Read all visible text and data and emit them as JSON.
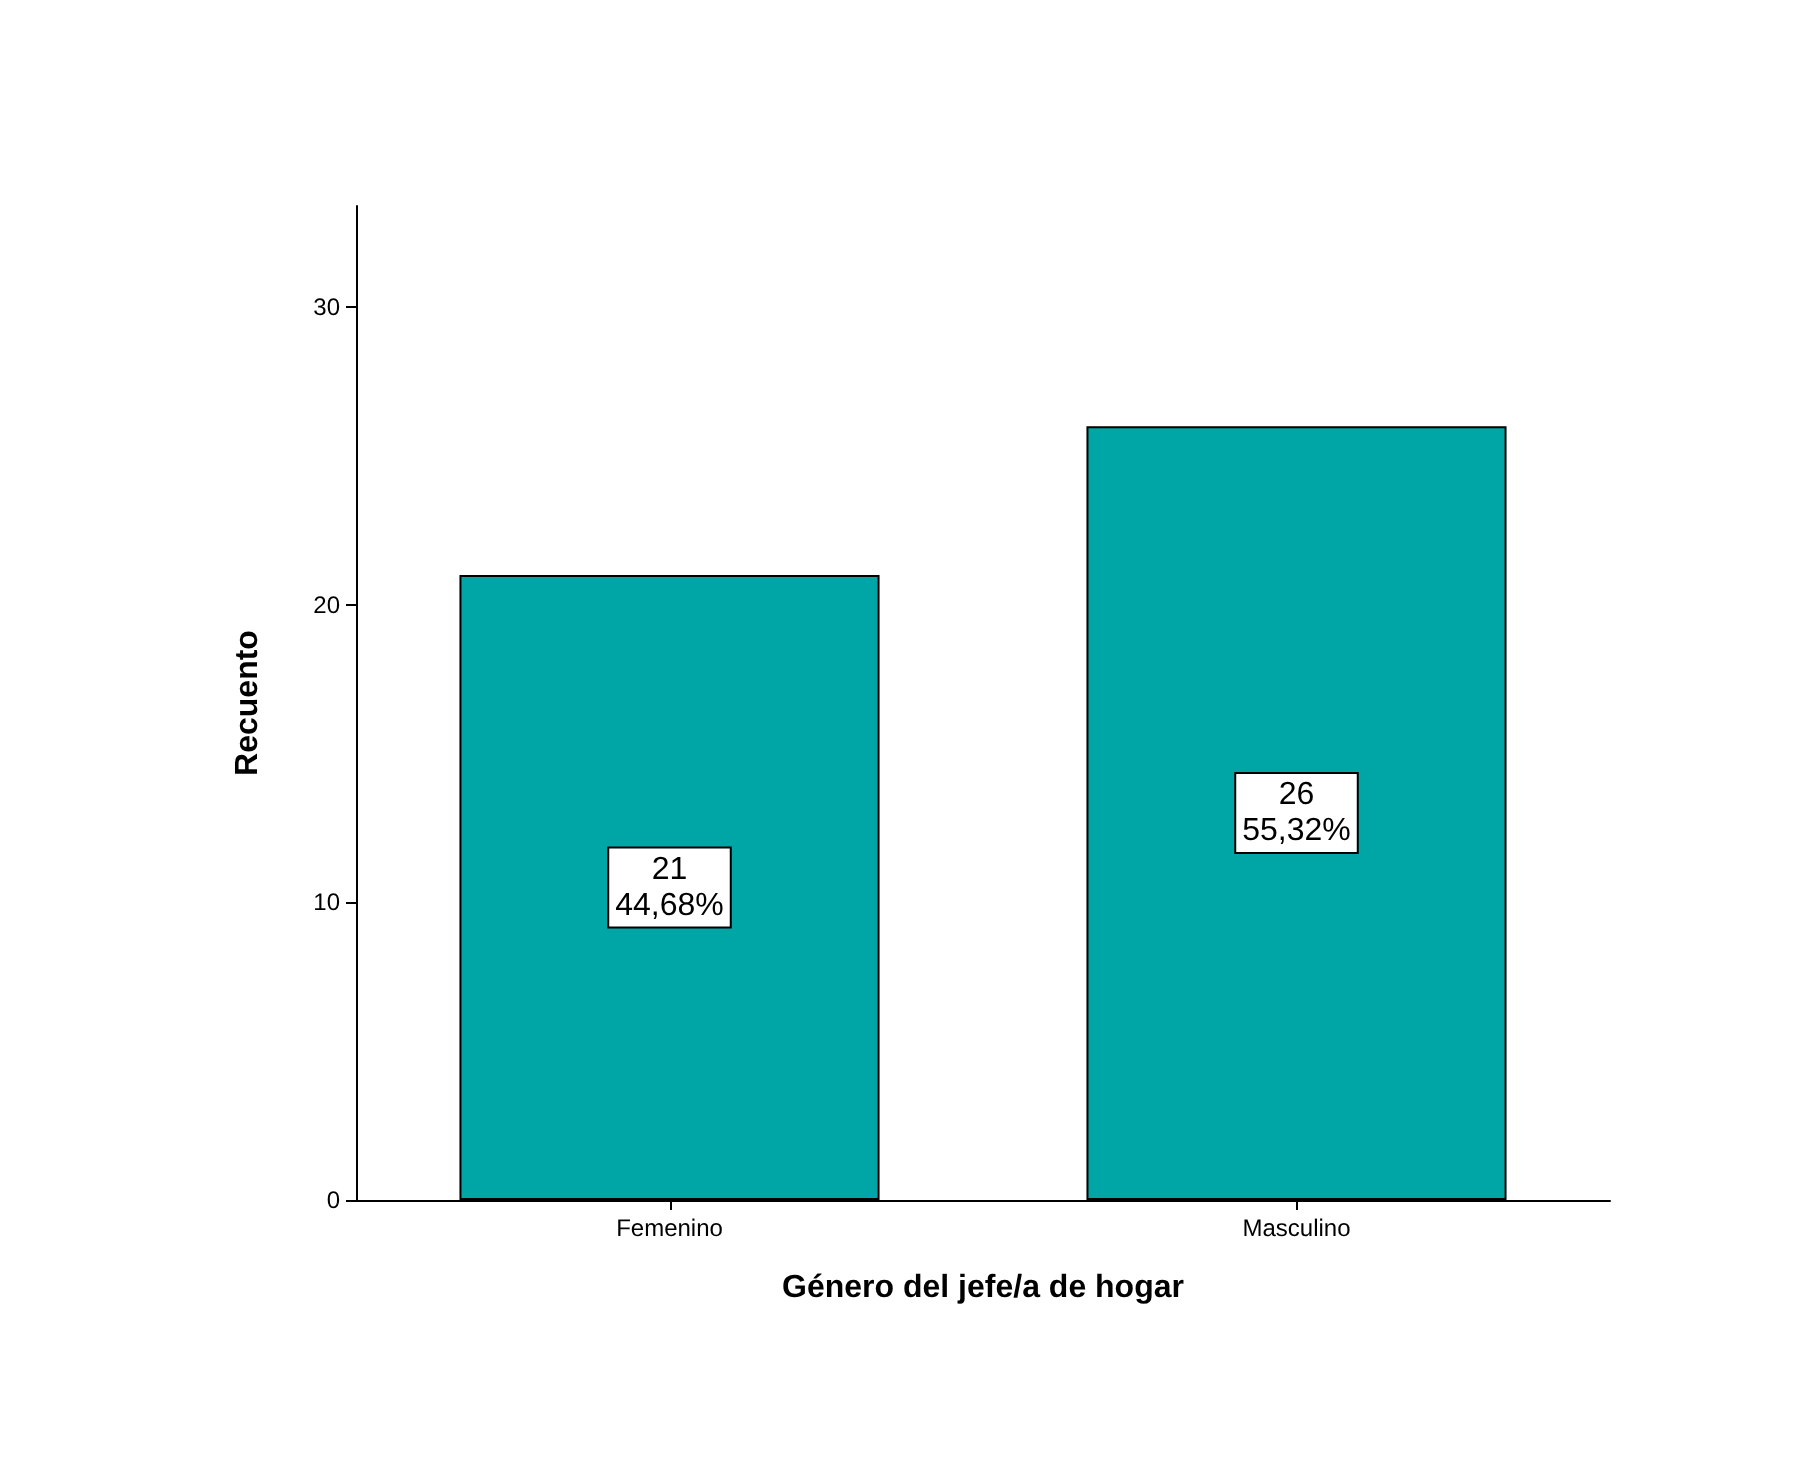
{
  "chart_data": {
    "type": "bar",
    "xlabel": "Género del jefe/a de hogar",
    "ylabel": "Recuento",
    "categories": [
      "Femenino",
      "Masculino"
    ],
    "series": [
      {
        "color": "#00a6a6",
        "values": [
          21,
          26
        ],
        "value_labels": [
          "21\n44,68%",
          "26\n55,32%"
        ]
      }
    ],
    "ylim": [
      0,
      33.4
    ],
    "yticks": [
      0,
      10,
      20,
      30
    ]
  }
}
